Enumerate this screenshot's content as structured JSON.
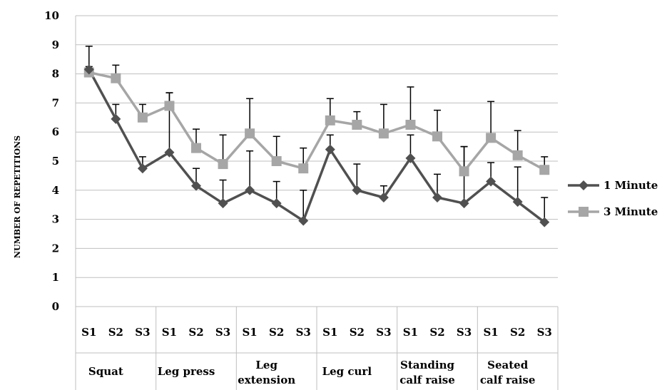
{
  "chart_data": {
    "type": "line",
    "ylabel": "NUMBER OF REPETITIONS",
    "ylim": [
      0,
      10
    ],
    "yticks": [
      0,
      1,
      2,
      3,
      4,
      5,
      6,
      7,
      8,
      9,
      10
    ],
    "grid": "horizontal",
    "legend_position": "right",
    "groups": [
      {
        "label": [
          "Squat"
        ],
        "sets": [
          "S1",
          "S2",
          "S3"
        ]
      },
      {
        "label": [
          "Leg press"
        ],
        "sets": [
          "S1",
          "S2",
          "S3"
        ]
      },
      {
        "label": [
          "Leg",
          "extension"
        ],
        "sets": [
          "S1",
          "S2",
          "S3"
        ]
      },
      {
        "label": [
          "Leg curl"
        ],
        "sets": [
          "S1",
          "S2",
          "S3"
        ]
      },
      {
        "label": [
          "Standing",
          "calf raise"
        ],
        "sets": [
          "S1",
          "S2",
          "S3"
        ]
      },
      {
        "label": [
          "Seated",
          "calf raise"
        ],
        "sets": [
          "S1",
          "S2",
          "S3"
        ]
      }
    ],
    "series": [
      {
        "name": "1 Minute",
        "color": "#505050",
        "marker": "diamond",
        "values": [
          8.15,
          6.45,
          4.75,
          5.3,
          4.15,
          3.55,
          4.0,
          3.55,
          2.95,
          5.4,
          4.0,
          3.75,
          5.1,
          3.75,
          3.55,
          4.3,
          3.6,
          2.9
        ],
        "error_upper": [
          8.95,
          6.95,
          5.15,
          7.35,
          4.75,
          4.35,
          5.35,
          4.3,
          4.0,
          5.9,
          4.9,
          4.15,
          5.9,
          4.55,
          5.5,
          4.95,
          4.8,
          3.75
        ]
      },
      {
        "name": "3 Minute",
        "color": "#a6a6a6",
        "marker": "square",
        "values": [
          8.05,
          7.85,
          6.5,
          6.9,
          5.45,
          4.9,
          5.95,
          5.0,
          4.75,
          6.4,
          6.25,
          5.95,
          6.25,
          5.85,
          4.65,
          5.8,
          5.2,
          4.7
        ],
        "error_upper": [
          8.25,
          8.3,
          6.95,
          7.35,
          6.1,
          5.9,
          7.15,
          5.85,
          5.45,
          7.15,
          6.7,
          6.95,
          7.55,
          6.75,
          5.5,
          7.05,
          6.05,
          5.15
        ]
      }
    ]
  }
}
